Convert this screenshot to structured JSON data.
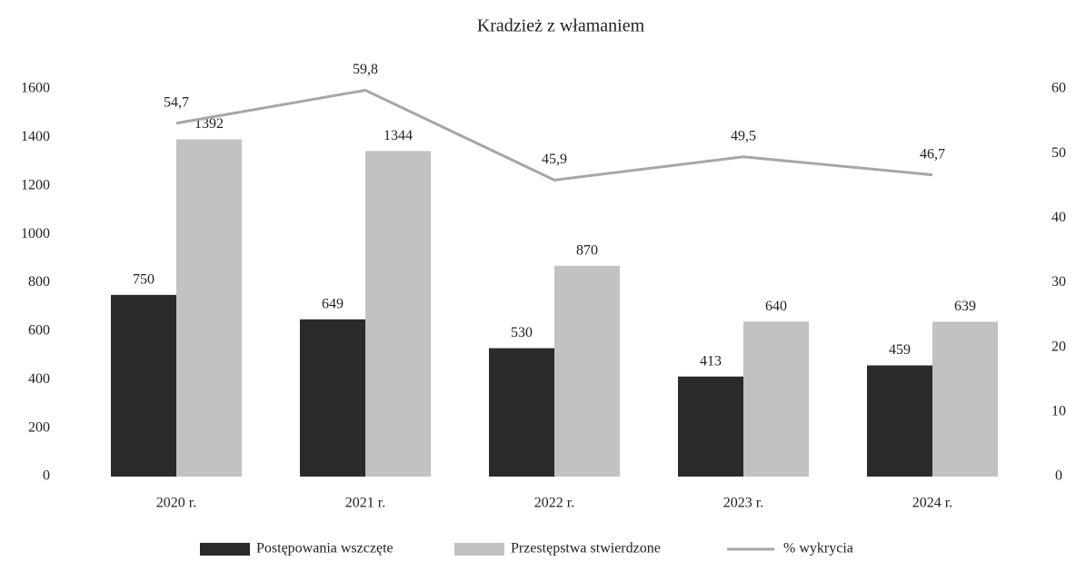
{
  "chart_data": {
    "type": "bar+line",
    "title": "Kradzież z włamaniem",
    "categories": [
      "2020 r.",
      "2021 r.",
      "2022 r.",
      "2023 r.",
      "2024 r."
    ],
    "series": [
      {
        "name": "Postępowania wszczęte",
        "color": "#2a2a2a",
        "type": "bar",
        "values": [
          750,
          649,
          530,
          413,
          459
        ]
      },
      {
        "name": "Przestępstwa stwierdzone",
        "color": "#c2c2c2",
        "type": "bar",
        "values": [
          1392,
          1344,
          870,
          640,
          639
        ]
      },
      {
        "name": "% wykrycia",
        "color": "#a6a6a6",
        "type": "line",
        "axis": "y2",
        "values": [
          54.7,
          59.8,
          45.9,
          49.5,
          46.7
        ],
        "value_labels": [
          "54,7",
          "59,8",
          "45,9",
          "49,5",
          "46,7"
        ]
      }
    ],
    "ylim": [
      0,
      1600
    ],
    "yticks": [
      0,
      200,
      400,
      600,
      800,
      1000,
      1200,
      1400,
      1600
    ],
    "y2lim": [
      0,
      60
    ],
    "y2ticks": [
      0,
      10,
      20,
      30,
      40,
      50,
      60
    ],
    "grid": false,
    "legend": "bottom"
  }
}
